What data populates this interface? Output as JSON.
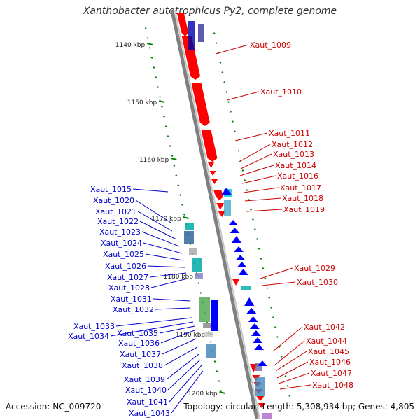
{
  "title": "Xanthobacter autotrophicus Py2, complete genome",
  "footer": {
    "accession": "Accession: NC_009720",
    "summary": "Topology: circular; Length: 5,308,934 bp; Genes: 4,805"
  },
  "colors": {
    "forward": "#ff0000",
    "reverse": "#0000ff",
    "forward_label": "#cc0000",
    "reverse_label": "#0000cc",
    "scale_tick": "#008000",
    "backbone": "#999999"
  },
  "scale_labels": [
    "1140 kbp",
    "1150 kbp",
    "1160 kbp",
    "1170 kbp",
    "1180 kbp",
    "1190 kbp",
    "1200 kbp"
  ],
  "genes_right": [
    {
      "name": "Xaut_1009"
    },
    {
      "name": "Xaut_1010"
    },
    {
      "name": "Xaut_1011"
    },
    {
      "name": "Xaut_1012"
    },
    {
      "name": "Xaut_1013"
    },
    {
      "name": "Xaut_1014"
    },
    {
      "name": "Xaut_1016"
    },
    {
      "name": "Xaut_1017"
    },
    {
      "name": "Xaut_1018"
    },
    {
      "name": "Xaut_1019"
    },
    {
      "name": "Xaut_1029"
    },
    {
      "name": "Xaut_1030"
    },
    {
      "name": "Xaut_1042"
    },
    {
      "name": "Xaut_1044"
    },
    {
      "name": "Xaut_1045"
    },
    {
      "name": "Xaut_1046"
    },
    {
      "name": "Xaut_1047"
    },
    {
      "name": "Xaut_1048"
    }
  ],
  "genes_left": [
    {
      "name": "Xaut_1015"
    },
    {
      "name": "Xaut_1020"
    },
    {
      "name": "Xaut_1021"
    },
    {
      "name": "Xaut_1022"
    },
    {
      "name": "Xaut_1023"
    },
    {
      "name": "Xaut_1024"
    },
    {
      "name": "Xaut_1025"
    },
    {
      "name": "Xaut_1026"
    },
    {
      "name": "Xaut_1027"
    },
    {
      "name": "Xaut_1028"
    },
    {
      "name": "Xaut_1031"
    },
    {
      "name": "Xaut_1032"
    },
    {
      "name": "Xaut_1033"
    },
    {
      "name": "Xaut_1034"
    },
    {
      "name": "Xaut_1035"
    },
    {
      "name": "Xaut_1036"
    },
    {
      "name": "Xaut_1037"
    },
    {
      "name": "Xaut_1038"
    },
    {
      "name": "Xaut_1039"
    },
    {
      "name": "Xaut_1040"
    },
    {
      "name": "Xaut_1041"
    },
    {
      "name": "Xaut_1043"
    }
  ]
}
